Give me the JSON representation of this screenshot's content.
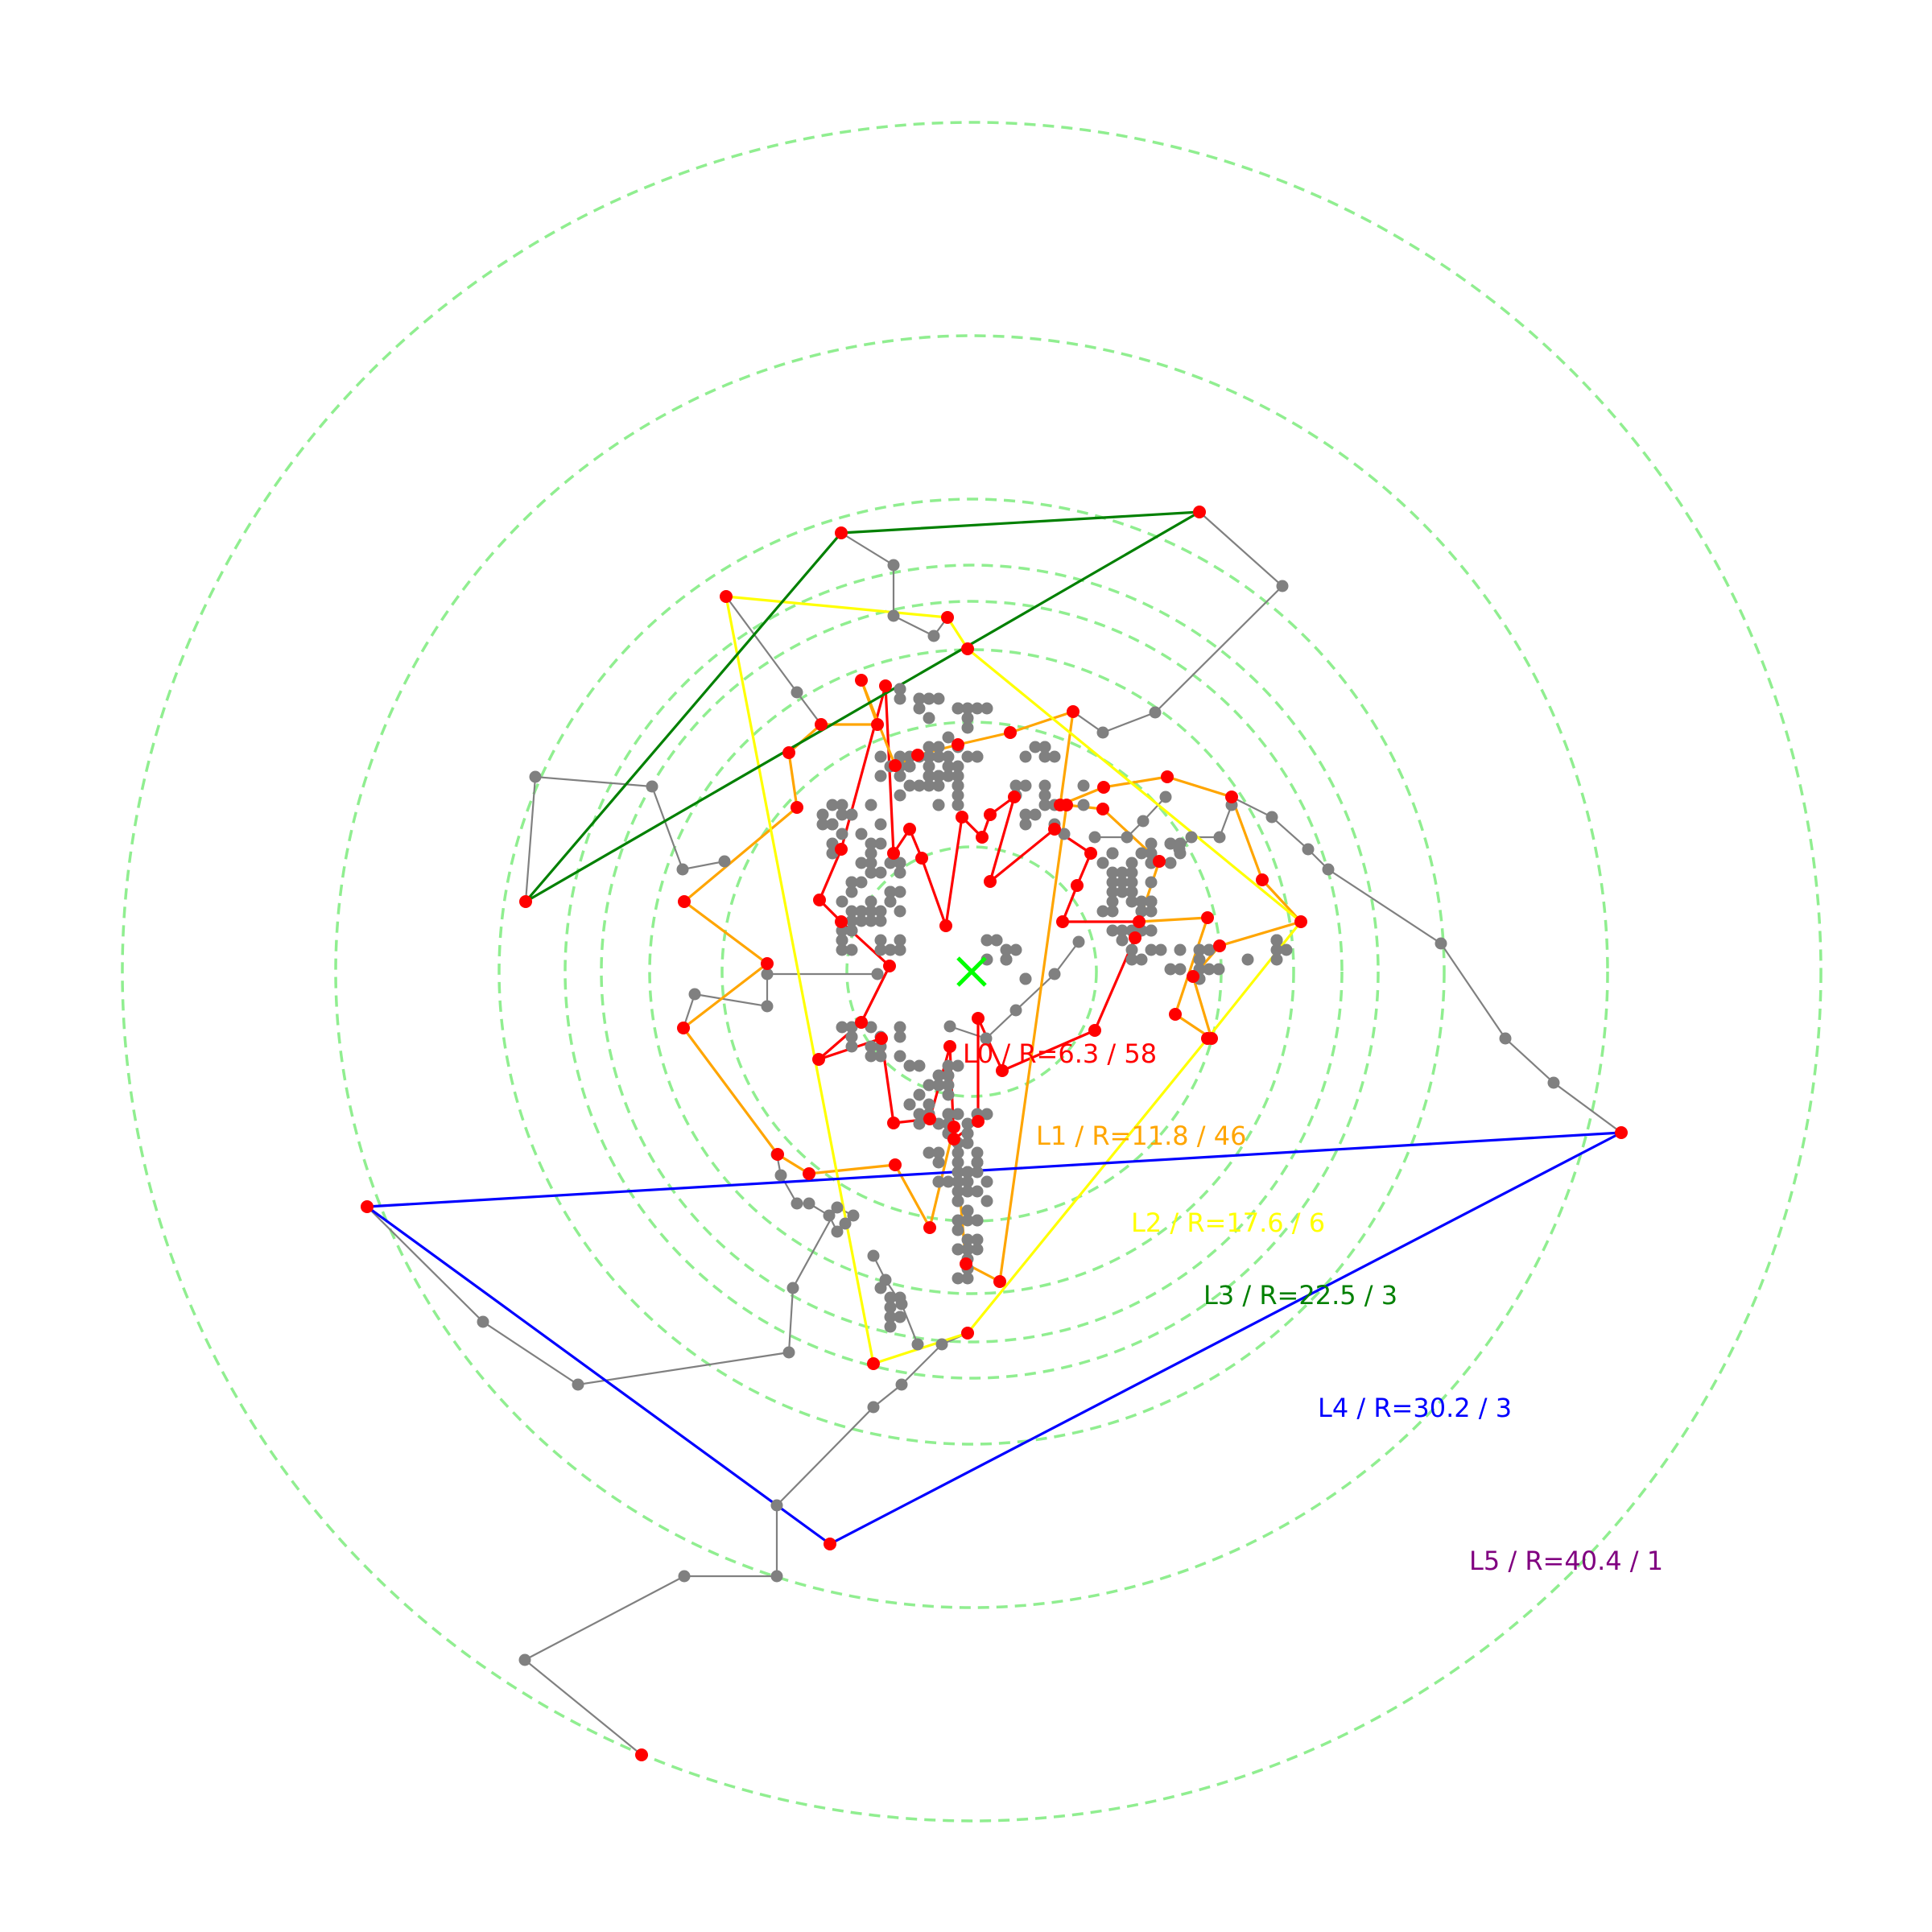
{
  "center_marker": {
    "symbol": "×",
    "color": "#00ff00"
  },
  "colors": {
    "ring": "#90ee90",
    "network_node": "#808080",
    "network_edge": "#808080",
    "layer_node": "#ff0000",
    "layers": [
      "#ff0000",
      "#ffa500",
      "#ffff00",
      "#008000",
      "#0000ff",
      "#800080"
    ]
  },
  "layers": [
    {
      "id": "L0",
      "radius": 6.3,
      "count": 58,
      "label": "L0 / R=6.3 / 58"
    },
    {
      "id": "L1",
      "radius": 11.8,
      "count": 46,
      "label": "L1 / R=11.8 / 46"
    },
    {
      "id": "L2",
      "radius": 17.6,
      "count": 6,
      "label": "L2 / R=17.6 / 6"
    },
    {
      "id": "L3",
      "radius": 22.5,
      "count": 3,
      "label": "L3 / R=22.5 / 3"
    },
    {
      "id": "L4",
      "radius": 30.2,
      "count": 3,
      "label": "L4 / R=30.2 / 3"
    },
    {
      "id": "L5",
      "radius": 40.4,
      "count": 1,
      "label": "L5 / R=40.4 / 1"
    }
  ]
}
